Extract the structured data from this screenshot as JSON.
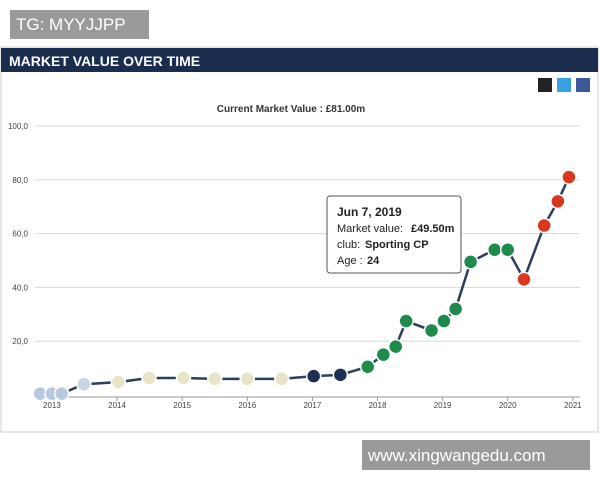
{
  "watermark_top": "TG: MYYJJPP",
  "watermark_bottom": "www.xingwangedu.com",
  "header": "MARKET VALUE OVER TIME",
  "tooltip": {
    "date": "Jun 7, 2019",
    "value_label": "Market value:",
    "value": "£49.50m",
    "club_label": "club:",
    "club": "Sporting CP",
    "age_label": "Age :",
    "age": "24"
  },
  "chart_data": {
    "type": "line",
    "title": "Current Market Value : £81.00m",
    "x": [
      2012.82,
      2013.0,
      2013.15,
      2013.49,
      2014.02,
      2014.49,
      2015.02,
      2015.5,
      2016.0,
      2016.53,
      2017.02,
      2017.43,
      2017.85,
      2018.09,
      2018.28,
      2018.44,
      2018.83,
      2019.02,
      2019.2,
      2019.43,
      2019.8,
      2020.0,
      2020.25,
      2020.56,
      2020.77,
      2020.94
    ],
    "series": [
      {
        "color": "#2b3e5a",
        "values": [
          0.5,
          0.5,
          0.5,
          4,
          4.8,
          6.3,
          6.3,
          6,
          6,
          6,
          7,
          7.5,
          10.5,
          15,
          18,
          27.5,
          24,
          27.5,
          32,
          49.5,
          54,
          54,
          43,
          63,
          72,
          81
        ],
        "marker_colors": [
          "#b8c8e0",
          "#b8c8e0",
          "#b8c8e0",
          "#c9d4e8",
          "#e8e4c8",
          "#e8e4c8",
          "#e8e4c8",
          "#e8e4c8",
          "#e8e4c8",
          "#e8e4c8",
          "#1d2f52",
          "#1d2f52",
          "#1e8a4c",
          "#1e8a4c",
          "#1e8a4c",
          "#1e8a4c",
          "#1e8a4c",
          "#1e8a4c",
          "#1e8a4c",
          "#1e8a4c",
          "#1e8a4c",
          "#1e8a4c",
          "#d9381e",
          "#d9381e",
          "#d9381e",
          "#d9381e"
        ]
      }
    ],
    "xlim": [
      2012.74,
      2021.11
    ],
    "xticks": [
      2013,
      2014,
      2015,
      2016,
      2017,
      2018,
      2019,
      2020,
      2021
    ],
    "ylim": [
      0,
      100
    ],
    "yticks": [
      {
        "value": 20,
        "label": "20,0"
      },
      {
        "value": 40,
        "label": "40,0"
      },
      {
        "value": 60,
        "label": "60,0"
      },
      {
        "value": 80,
        "label": "80,0"
      },
      {
        "value": 100,
        "label": "100,0"
      }
    ],
    "grid": true
  }
}
